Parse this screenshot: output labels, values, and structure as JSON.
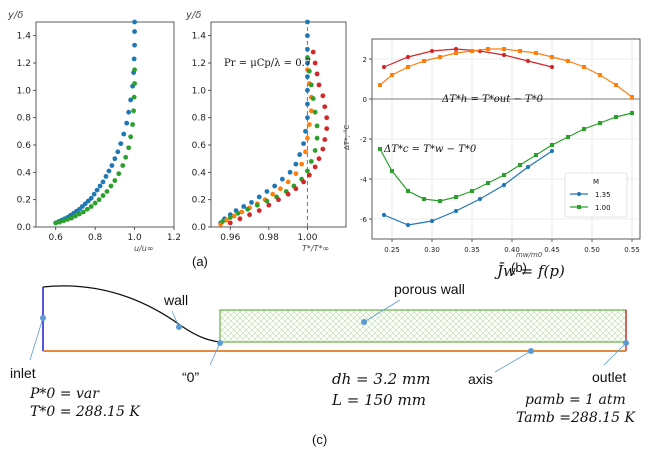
{
  "panel_labels": {
    "a": "(a)",
    "b": "(b)",
    "c": "(c)"
  },
  "chart_data": [
    {
      "id": "a1",
      "type": "scatter",
      "ylabel": "y/δ",
      "xlabel": "u/u∞",
      "xlim": [
        0.5,
        1.2
      ],
      "ylim": [
        0,
        1.5
      ],
      "xticks": [
        "0.6",
        "0.8",
        "1.0",
        "1.2"
      ],
      "yticks": [
        "0.0",
        "0.2",
        "0.4",
        "0.6",
        "0.8",
        "1.0",
        "1.2",
        "1.4"
      ],
      "series": [
        {
          "color": "#1f77b4",
          "points": [
            [
              0.6,
              0.03
            ],
            [
              0.615,
              0.04
            ],
            [
              0.63,
              0.05
            ],
            [
              0.645,
              0.06
            ],
            [
              0.66,
              0.07
            ],
            [
              0.675,
              0.085
            ],
            [
              0.69,
              0.1
            ],
            [
              0.705,
              0.115
            ],
            [
              0.72,
              0.13
            ],
            [
              0.735,
              0.15
            ],
            [
              0.75,
              0.17
            ],
            [
              0.765,
              0.19
            ],
            [
              0.78,
              0.21
            ],
            [
              0.795,
              0.24
            ],
            [
              0.81,
              0.27
            ],
            [
              0.825,
              0.3
            ],
            [
              0.84,
              0.33
            ],
            [
              0.855,
              0.37
            ],
            [
              0.87,
              0.41
            ],
            [
              0.885,
              0.45
            ],
            [
              0.9,
              0.5
            ],
            [
              0.915,
              0.55
            ],
            [
              0.93,
              0.61
            ],
            [
              0.945,
              0.68
            ],
            [
              0.96,
              0.76
            ],
            [
              0.97,
              0.84
            ],
            [
              0.98,
              0.93
            ],
            [
              0.99,
              1.03
            ],
            [
              0.995,
              1.13
            ],
            [
              0.998,
              1.23
            ],
            [
              1.0,
              1.33
            ],
            [
              1.0,
              1.43
            ],
            [
              1.0,
              1.5
            ]
          ]
        },
        {
          "color": "#2ca02c",
          "points": [
            [
              0.6,
              0.03
            ],
            [
              0.62,
              0.035
            ],
            [
              0.64,
              0.045
            ],
            [
              0.66,
              0.055
            ],
            [
              0.68,
              0.065
            ],
            [
              0.7,
              0.08
            ],
            [
              0.72,
              0.095
            ],
            [
              0.74,
              0.11
            ],
            [
              0.76,
              0.13
            ],
            [
              0.78,
              0.15
            ],
            [
              0.8,
              0.175
            ],
            [
              0.82,
              0.2
            ],
            [
              0.84,
              0.23
            ],
            [
              0.86,
              0.26
            ],
            [
              0.88,
              0.3
            ],
            [
              0.9,
              0.34
            ],
            [
              0.92,
              0.39
            ],
            [
              0.94,
              0.45
            ],
            [
              0.955,
              0.51
            ],
            [
              0.97,
              0.58
            ],
            [
              0.98,
              0.66
            ],
            [
              0.99,
              0.75
            ],
            [
              0.995,
              0.85
            ],
            [
              0.998,
              0.95
            ],
            [
              1.0,
              1.05
            ],
            [
              1.0,
              1.15
            ]
          ]
        }
      ]
    },
    {
      "id": "a2",
      "type": "scatter",
      "ylabel": "y/δ",
      "xlabel": "T*/T*∞",
      "annotation": "Pr = μCp/λ = 0.7",
      "xlim": [
        0.95,
        1.02
      ],
      "ylim": [
        0,
        1.5
      ],
      "xticks": [
        "0.96",
        "0.98",
        "1.00"
      ],
      "yticks": [
        "0.0",
        "0.2",
        "0.4",
        "0.6",
        "0.8",
        "1.0",
        "1.2",
        "1.4"
      ],
      "refline_x": 1.0,
      "series": [
        {
          "color": "#1f77b4",
          "points": [
            [
              0.955,
              0.03
            ],
            [
              0.957,
              0.06
            ],
            [
              0.96,
              0.09
            ],
            [
              0.963,
              0.12
            ],
            [
              0.967,
              0.15
            ],
            [
              0.971,
              0.18
            ],
            [
              0.975,
              0.22
            ],
            [
              0.979,
              0.26
            ],
            [
              0.983,
              0.3
            ],
            [
              0.987,
              0.35
            ],
            [
              0.991,
              0.4
            ],
            [
              0.994,
              0.46
            ],
            [
              0.996,
              0.53
            ],
            [
              0.998,
              0.61
            ],
            [
              0.999,
              0.7
            ],
            [
              1.0,
              0.8
            ],
            [
              1.0,
              0.9
            ],
            [
              1.0,
              1.0
            ],
            [
              1.0,
              1.1
            ],
            [
              1.0,
              1.2
            ],
            [
              1.0,
              1.3
            ],
            [
              1.0,
              1.4
            ],
            [
              1.0,
              1.5
            ]
          ]
        },
        {
          "color": "#ff7f0e",
          "points": [
            [
              0.955,
              0.02
            ],
            [
              0.958,
              0.05
            ],
            [
              0.962,
              0.08
            ],
            [
              0.966,
              0.11
            ],
            [
              0.97,
              0.14
            ],
            [
              0.974,
              0.17
            ],
            [
              0.978,
              0.2
            ],
            [
              0.982,
              0.24
            ],
            [
              0.986,
              0.28
            ],
            [
              0.99,
              0.33
            ],
            [
              0.994,
              0.39
            ],
            [
              0.997,
              0.46
            ],
            [
              0.999,
              0.55
            ],
            [
              1.0,
              0.65
            ],
            [
              1.001,
              0.75
            ],
            [
              1.002,
              0.85
            ],
            [
              1.002,
              0.95
            ],
            [
              1.001,
              1.05
            ],
            [
              1.0,
              1.15
            ]
          ]
        },
        {
          "color": "#2ca02c",
          "points": [
            [
              0.956,
              0.04
            ],
            [
              0.96,
              0.07
            ],
            [
              0.964,
              0.1
            ],
            [
              0.969,
              0.13
            ],
            [
              0.974,
              0.16
            ],
            [
              0.979,
              0.19
            ],
            [
              0.984,
              0.22
            ],
            [
              0.989,
              0.26
            ],
            [
              0.993,
              0.3
            ],
            [
              0.997,
              0.35
            ],
            [
              1.0,
              0.41
            ],
            [
              1.002,
              0.48
            ],
            [
              1.004,
              0.56
            ],
            [
              1.005,
              0.65
            ],
            [
              1.005,
              0.74
            ],
            [
              1.004,
              0.84
            ],
            [
              1.003,
              0.94
            ],
            [
              1.002,
              1.04
            ],
            [
              1.001,
              1.14
            ],
            [
              1.0,
              1.24
            ]
          ]
        },
        {
          "color": "#d62728",
          "points": [
            [
              0.96,
              0.03
            ],
            [
              0.965,
              0.06
            ],
            [
              0.97,
              0.09
            ],
            [
              0.975,
              0.12
            ],
            [
              0.98,
              0.16
            ],
            [
              0.985,
              0.2
            ],
            [
              0.99,
              0.24
            ],
            [
              0.994,
              0.28
            ],
            [
              0.998,
              0.33
            ],
            [
              1.001,
              0.38
            ],
            [
              1.004,
              0.44
            ],
            [
              1.006,
              0.5
            ],
            [
              1.008,
              0.57
            ],
            [
              1.009,
              0.64
            ],
            [
              1.01,
              0.72
            ],
            [
              1.01,
              0.8
            ],
            [
              1.009,
              0.88
            ],
            [
              1.008,
              0.96
            ],
            [
              1.006,
              1.04
            ],
            [
              1.005,
              1.12
            ],
            [
              1.004,
              1.2
            ],
            [
              1.003,
              1.28
            ]
          ]
        }
      ]
    },
    {
      "id": "b",
      "type": "line",
      "xlabel": "mw/m0",
      "ylabel": "ΔT*, °C",
      "xlim": [
        0.225,
        0.56
      ],
      "ylim": [
        -7,
        3
      ],
      "xticks": [
        "0.25",
        "0.30",
        "0.35",
        "0.40",
        "0.45",
        "0.50",
        "0.55"
      ],
      "yticks": [
        "-6",
        "-4",
        "-2",
        "0",
        "2"
      ],
      "annotations": [
        "ΔT*h = T*out − T*0",
        "ΔT*c = T*w − T*0"
      ],
      "legend": {
        "title": "M",
        "entries": [
          "1.35",
          "1.00"
        ],
        "placement": "lower-right"
      },
      "series": [
        {
          "name": "1.35",
          "color": "#1f77b4",
          "marker": "circle",
          "x": [
            0.24,
            0.27,
            0.3,
            0.33,
            0.36,
            0.39,
            0.42,
            0.45
          ],
          "y": [
            -5.8,
            -6.3,
            -6.1,
            -5.6,
            -5.0,
            -4.3,
            -3.4,
            -2.6
          ]
        },
        {
          "name": "1.00",
          "color": "#2ca02c",
          "marker": "square",
          "x": [
            0.235,
            0.25,
            0.27,
            0.29,
            0.31,
            0.33,
            0.35,
            0.37,
            0.39,
            0.41,
            0.43,
            0.45,
            0.47,
            0.49,
            0.51,
            0.53,
            0.55
          ],
          "y": [
            -2.5,
            -3.6,
            -4.6,
            -5.0,
            -5.1,
            -4.9,
            -4.6,
            -4.2,
            -3.8,
            -3.3,
            -2.8,
            -2.3,
            -1.9,
            -1.5,
            -1.2,
            -0.9,
            -0.7
          ]
        },
        {
          "color": "#d62728",
          "marker": "circle",
          "x": [
            0.24,
            0.27,
            0.3,
            0.33,
            0.36,
            0.39,
            0.42,
            0.45
          ],
          "y": [
            1.6,
            2.1,
            2.4,
            2.5,
            2.4,
            2.2,
            1.9,
            1.6
          ]
        },
        {
          "color": "#ff7f0e",
          "marker": "square",
          "x": [
            0.235,
            0.25,
            0.27,
            0.29,
            0.31,
            0.33,
            0.35,
            0.37,
            0.39,
            0.41,
            0.43,
            0.45,
            0.47,
            0.49,
            0.51,
            0.53,
            0.55
          ],
          "y": [
            0.7,
            1.2,
            1.6,
            1.9,
            2.1,
            2.3,
            2.4,
            2.5,
            2.5,
            2.4,
            2.3,
            2.1,
            1.9,
            1.6,
            1.2,
            0.7,
            0.1
          ]
        }
      ]
    }
  ],
  "diagram": {
    "labels": {
      "inlet": "inlet",
      "wall": "wall",
      "porous_wall": "porous wall",
      "zero": "“0”",
      "axis": "axis",
      "outlet": "outlet",
      "Jw": "J̄w = f(p)",
      "P0": "P*0 = var",
      "T0": "T*0 = 288.15 K",
      "dh": "dh = 3.2 mm",
      "L": "L = 150 mm",
      "pamb": "pamb = 1 atm",
      "Tamb": "Tamb =288.15 K"
    }
  }
}
